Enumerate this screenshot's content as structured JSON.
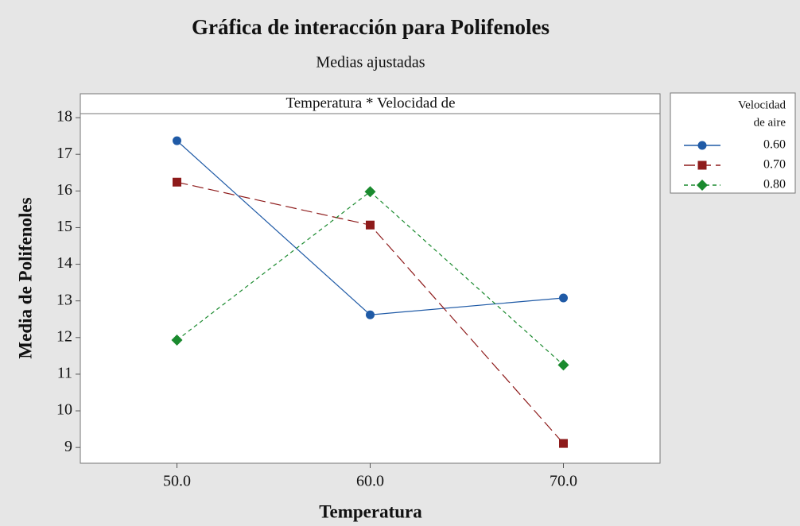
{
  "chart_data": {
    "type": "line",
    "title": "Gráfica de interacción para Polifenoles",
    "subtitle": "Medias ajustadas",
    "panel_title": "Temperatura * Velocidad de",
    "xlabel": "Temperatura",
    "ylabel": "Media de Polifenoles",
    "legend_title": [
      "Velocidad",
      "de aire"
    ],
    "legend_position": "right",
    "x": [
      50,
      60,
      70
    ],
    "xlim": [
      45,
      75
    ],
    "xticks": [
      {
        "value": 50,
        "label": "50.0"
      },
      {
        "value": 60,
        "label": "60.0"
      },
      {
        "value": 70,
        "label": "70.0"
      }
    ],
    "ylim": [
      8.57,
      18.11
    ],
    "yticks": [
      9,
      10,
      11,
      12,
      13,
      14,
      15,
      16,
      17,
      18
    ],
    "series": [
      {
        "name": "0.60",
        "color": "#1f5aa6",
        "marker": "circle",
        "dash": "solid",
        "values": [
          17.37,
          12.62,
          13.08
        ]
      },
      {
        "name": "0.70",
        "color": "#8e1b1b",
        "marker": "square",
        "dash": "long",
        "values": [
          16.24,
          15.07,
          9.11
        ]
      },
      {
        "name": "0.80",
        "color": "#1a8a2e",
        "marker": "diamond",
        "dash": "short",
        "values": [
          11.93,
          15.98,
          11.25
        ]
      }
    ]
  }
}
